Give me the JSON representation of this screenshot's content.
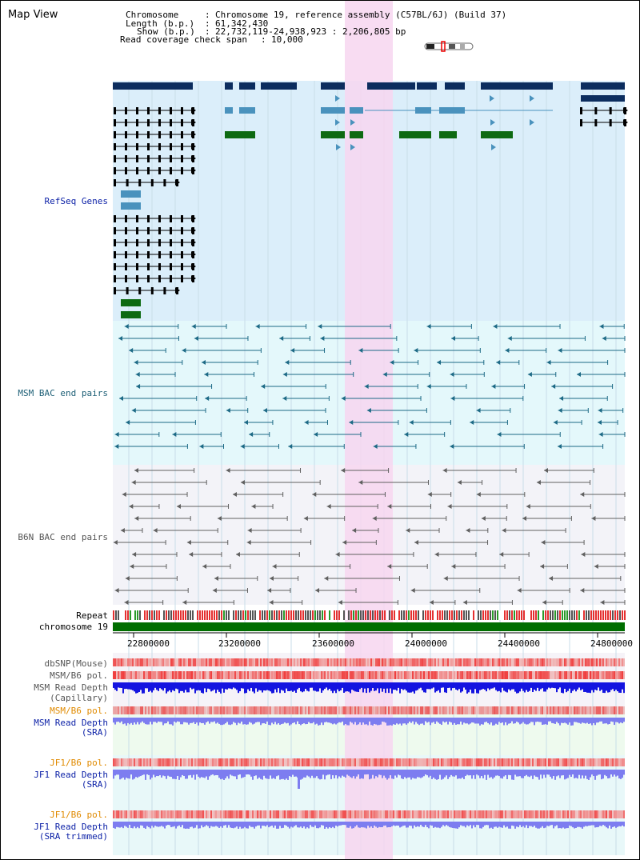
{
  "view_title": "Map View",
  "info": {
    "chromosome_key": "Chromosome",
    "chromosome_val": "Chromosome 19, reference assembly (C57BL/6J) (Build 37)",
    "length_key": "Length (b.p.)",
    "length_val": "61,342,430",
    "show_key": "Show (b.p.)",
    "show_val": "22,732,119-24,938,923 : 2,206,805 bp",
    "coverage_key": "Read coverage check span",
    "coverage_val": "10,000"
  },
  "tracks": {
    "refseq": "RefSeq Genes",
    "msm_bac": "MSM BAC end pairs",
    "b6n_bac": "B6N BAC end pairs",
    "repeat": "Repeat",
    "chromosome": "chromosome 19",
    "dbsnp": "dbSNP(Mouse)",
    "msm_b6_pol": "MSM/B6 pol.",
    "msm_depth_1": "MSM Read Depth",
    "msm_depth_2": "(Capillary)",
    "msm_b6_pol_sra": "MSM/B6 pol.",
    "msm_sra_1": "MSM Read Depth",
    "msm_sra_2": "(SRA)",
    "jf1_pol_1": "JF1/B6 pol.",
    "jf1_depth_1": "JF1 Read Depth",
    "jf1_sra_1": "(SRA)",
    "jf1_pol_2": "JF1/B6 pol.",
    "jf1_depth_2": "JF1 Read Depth",
    "jf1_sra_2": "(SRA trimmed)"
  },
  "axis_ticks": [
    "22800000",
    "23200000",
    "23600000",
    "24000000",
    "24400000",
    "24800000"
  ],
  "colors": {
    "refseq_bg": "#dbeefa",
    "msm_bg": "#e4f8fb",
    "b6n_bg": "#f3f3f8",
    "highlight": "#f7d6f0",
    "gene_dark": "#0c2d5e",
    "gene_mid": "#4a92bd",
    "gene_green": "#0d6a12",
    "msm_line": "#1d6a86",
    "b6n_line": "#606060",
    "chrom_green": "#006e00",
    "depth_blue": "#1414e0",
    "depth_light": "#7d7df0",
    "snp_red": "#f25a5a"
  }
}
